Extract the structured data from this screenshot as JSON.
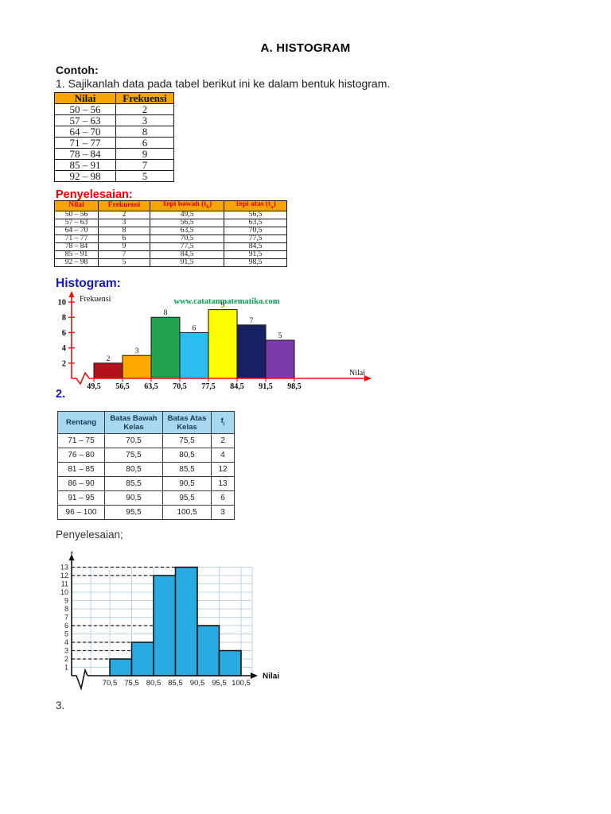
{
  "page": {
    "title": "A.  HISTOGRAM",
    "contoh_label": "Contoh:",
    "problem1": "1. Sajikanlah data pada tabel berikut ini ke dalam bentuk histogram.",
    "penyelesaian1_label": "Penyelesaian:",
    "histogram_label": "Histogram:",
    "problem2_label": "2.",
    "penyelesaian2_label": "Penyelesaian;",
    "problem3_label": "3."
  },
  "colors": {
    "heading_red": "#ee0000",
    "heading_blue": "#1414cc",
    "watermark_green": "#00a551"
  },
  "table1": {
    "header_bg": "#f5a50a",
    "header_color": "#111111",
    "headers": [
      "Nilai",
      "Frekuensi"
    ],
    "rows": [
      [
        "50 – 56",
        "2"
      ],
      [
        "57 – 63",
        "3"
      ],
      [
        "64 – 70",
        "8"
      ],
      [
        "71 – 77",
        "6"
      ],
      [
        "78 – 84",
        "9"
      ],
      [
        "85 – 91",
        "7"
      ],
      [
        "92 – 98",
        "5"
      ]
    ]
  },
  "table2": {
    "header_bg": "#f5a50a",
    "header_color": "#e00000",
    "headers": [
      "Nilai",
      "Frekuensi",
      "Tepi bawah (t_b)",
      "Tepi atas (t_a)"
    ],
    "rows": [
      [
        "50 – 56",
        "2",
        "49,5",
        "56,5"
      ],
      [
        "57 – 63",
        "3",
        "56,5",
        "63,5"
      ],
      [
        "64 – 70",
        "8",
        "63,5",
        "70,5"
      ],
      [
        "71 – 77",
        "6",
        "70,5",
        "77,5"
      ],
      [
        "78 – 84",
        "9",
        "77,5",
        "84,5"
      ],
      [
        "85 – 91",
        "7",
        "84,5",
        "91,5"
      ],
      [
        "92 – 98",
        "5",
        "91,5",
        "98,5"
      ]
    ]
  },
  "table3": {
    "header_bg": "#a6d8f0",
    "header_color": "#17365d",
    "headers": [
      "Rentang",
      "Batas Bawah Kelas",
      "Batas Atas Kelas",
      "f_i"
    ],
    "rows": [
      [
        "71 – 75",
        "70,5",
        "75,5",
        "2"
      ],
      [
        "76 – 80",
        "75,5",
        "80,5",
        "4"
      ],
      [
        "81 – 85",
        "80,5",
        "85,5",
        "12"
      ],
      [
        "86 – 90",
        "85,5",
        "90,5",
        "13"
      ],
      [
        "91 – 95",
        "90,5",
        "95,5",
        "6"
      ],
      [
        "96 – 100",
        "95,5",
        "100,5",
        "3"
      ]
    ]
  },
  "chart_data": [
    {
      "type": "bar",
      "title": "Histogram",
      "ylabel": "Frekuensi",
      "xlabel": "Nilai",
      "watermark": "www.catatanmatematika.com",
      "categories": [
        "49,5–56,5",
        "56,5–63,5",
        "63,5–70,5",
        "70,5–77,5",
        "77,5–84,5",
        "84,5–91,5",
        "91,5–98,5"
      ],
      "boundary_labels": [
        "49,5",
        "56,5",
        "63,5",
        "70,5",
        "77,5",
        "84,5",
        "91,5",
        "98,5"
      ],
      "values": [
        2,
        3,
        8,
        6,
        9,
        7,
        5
      ],
      "y_ticks": [
        2,
        4,
        6,
        8,
        10
      ],
      "ylim": [
        0,
        10.8
      ],
      "bar_colors": [
        "#b3121b",
        "#ffa800",
        "#21a04f",
        "#2bbdf0",
        "#fdfc00",
        "#182064",
        "#7b3bab"
      ],
      "axis_color": "#ee1111",
      "grid": false,
      "legend": "none",
      "value_labels_shown": true
    },
    {
      "type": "bar",
      "title": "",
      "ylabel": "f",
      "xlabel": "Nilai",
      "categories": [
        "70,5–75,5",
        "75,5–80,5",
        "80,5–85,5",
        "85,5–90,5",
        "90,5–95,5",
        "95,5–100,5"
      ],
      "boundary_labels": [
        "70,5",
        "75,5",
        "80,5",
        "85,5",
        "90,5",
        "95,5",
        "100,5"
      ],
      "values": [
        2,
        4,
        12,
        13,
        6,
        3
      ],
      "y_ticks": [
        1,
        2,
        3,
        4,
        5,
        6,
        7,
        8,
        9,
        10,
        11,
        12,
        13
      ],
      "ylim": [
        0,
        13.5
      ],
      "bar_color": "#29abe2",
      "axis_color": "#111111",
      "grid": true,
      "grid_color": "#bfd6e2",
      "dashed_guides_at": [
        2,
        4,
        12,
        13,
        6,
        3
      ],
      "legend": "none",
      "value_labels_shown": false
    }
  ]
}
